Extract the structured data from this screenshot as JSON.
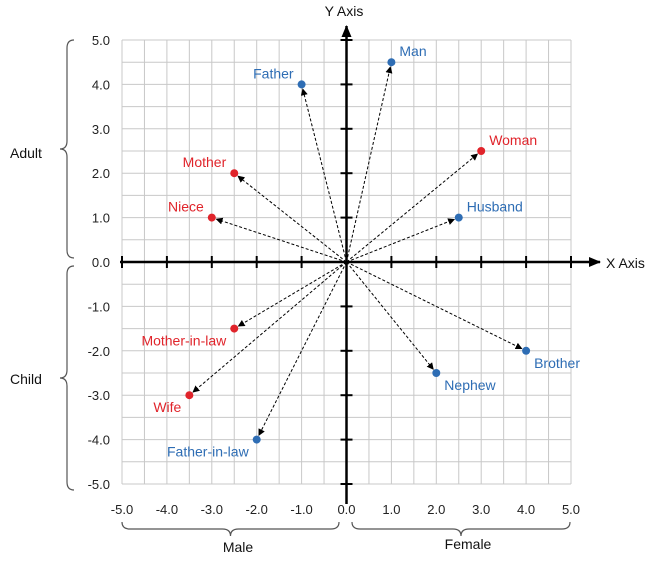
{
  "colors": {
    "blue": "#2E6DB4",
    "red": "#E0242B",
    "axis": "#000000",
    "grid": "#c8c8c8"
  },
  "chart_data": {
    "type": "scatter",
    "xlabel": "X Axis",
    "ylabel": "Y Axis",
    "xlim": [
      -5,
      5
    ],
    "ylim": [
      -5,
      5
    ],
    "grid": true,
    "grid_step": 0.5,
    "x_ticks": [
      "-5.0",
      "-4.0",
      "-3.0",
      "-2.0",
      "-1.0",
      "0.0",
      "1.0",
      "2.0",
      "3.0",
      "4.0",
      "5.0"
    ],
    "y_ticks": [
      "5.0",
      "4.0",
      "3.0",
      "2.0",
      "1.0",
      "0.0",
      "-1.0",
      "-2.0",
      "-3.0",
      "-4.0",
      "-5.0"
    ],
    "x_tick_values": [
      -5,
      -4,
      -3,
      -2,
      -1,
      0,
      1,
      2,
      3,
      4,
      5
    ],
    "y_tick_values": [
      5,
      4,
      3,
      2,
      1,
      0,
      -1,
      -2,
      -3,
      -4,
      -5
    ],
    "vectors_from_origin": true,
    "side_labels": {
      "adult": "Adult",
      "child": "Child",
      "male": "Male",
      "female": "Female"
    },
    "points": [
      {
        "label": "Man",
        "x": 1.0,
        "y": 4.5,
        "color": "blue",
        "anchor": "right-up"
      },
      {
        "label": "Father",
        "x": -1.0,
        "y": 4.0,
        "color": "blue",
        "anchor": "left-up"
      },
      {
        "label": "Woman",
        "x": 3.0,
        "y": 2.5,
        "color": "red",
        "anchor": "right-up"
      },
      {
        "label": "Mother",
        "x": -2.5,
        "y": 2.0,
        "color": "red",
        "anchor": "left-up"
      },
      {
        "label": "Husband",
        "x": 2.5,
        "y": 1.0,
        "color": "blue",
        "anchor": "right-up"
      },
      {
        "label": "Niece",
        "x": -3.0,
        "y": 1.0,
        "color": "red",
        "anchor": "left-up"
      },
      {
        "label": "Mother-in-law",
        "x": -2.5,
        "y": -1.5,
        "color": "red",
        "anchor": "left-down"
      },
      {
        "label": "Brother",
        "x": 4.0,
        "y": -2.0,
        "color": "blue",
        "anchor": "right-down"
      },
      {
        "label": "Nephew",
        "x": 2.0,
        "y": -2.5,
        "color": "blue",
        "anchor": "right-down"
      },
      {
        "label": "Wife",
        "x": -3.5,
        "y": -3.0,
        "color": "red",
        "anchor": "left-down"
      },
      {
        "label": "Father-in-law",
        "x": -2.0,
        "y": -4.0,
        "color": "blue",
        "anchor": "left-down"
      }
    ]
  }
}
